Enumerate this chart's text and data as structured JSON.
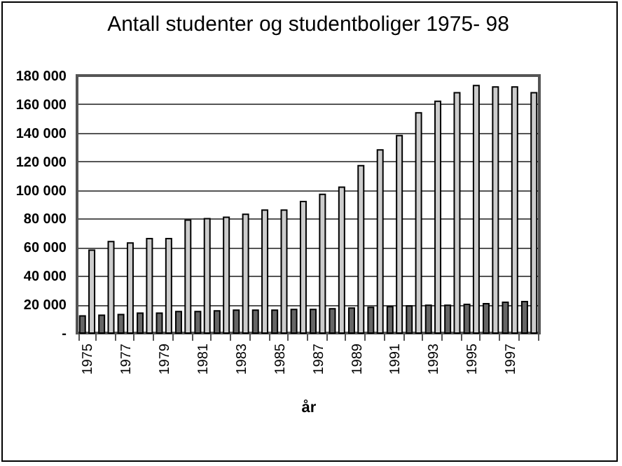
{
  "chart_data": {
    "type": "bar",
    "title": "Antall studenter og studentboliger 1975- 98",
    "xlabel": "år",
    "categories": [
      "1975",
      null,
      "1977",
      null,
      "1979",
      null,
      "1981",
      null,
      "1983",
      null,
      "1985",
      null,
      "1987",
      null,
      "1989",
      null,
      "1991",
      null,
      "1993",
      null,
      "1995",
      null,
      "1997",
      null
    ],
    "series": [
      {
        "color": "#666666",
        "values": [
          12000,
          12500,
          13000,
          14000,
          14000,
          15000,
          15000,
          15500,
          16000,
          16000,
          16000,
          16500,
          16500,
          17000,
          17500,
          18000,
          18500,
          19000,
          19500,
          19500,
          20000,
          20500,
          21500,
          22000
        ]
      },
      {
        "color": "#cccccc",
        "values": [
          58000,
          64000,
          63000,
          66000,
          66000,
          79000,
          80000,
          81000,
          83000,
          86000,
          86000,
          92000,
          97000,
          102000,
          117000,
          128000,
          138000,
          154000,
          162000,
          168000,
          173000,
          172000,
          172000,
          168000
        ]
      }
    ],
    "ylim": [
      0,
      180000
    ],
    "yticks": [
      {
        "value": 0,
        "label": "-"
      },
      {
        "value": 20000,
        "label": "20 000"
      },
      {
        "value": 40000,
        "label": "40 000"
      },
      {
        "value": 60000,
        "label": "60 000"
      },
      {
        "value": 80000,
        "label": "80 000"
      },
      {
        "value": 100000,
        "label": "100 000"
      },
      {
        "value": 120000,
        "label": "120 000"
      },
      {
        "value": 140000,
        "label": "140 000"
      },
      {
        "value": 160000,
        "label": "160 000"
      },
      {
        "value": 180000,
        "label": "180 000"
      }
    ],
    "grid": "y"
  }
}
